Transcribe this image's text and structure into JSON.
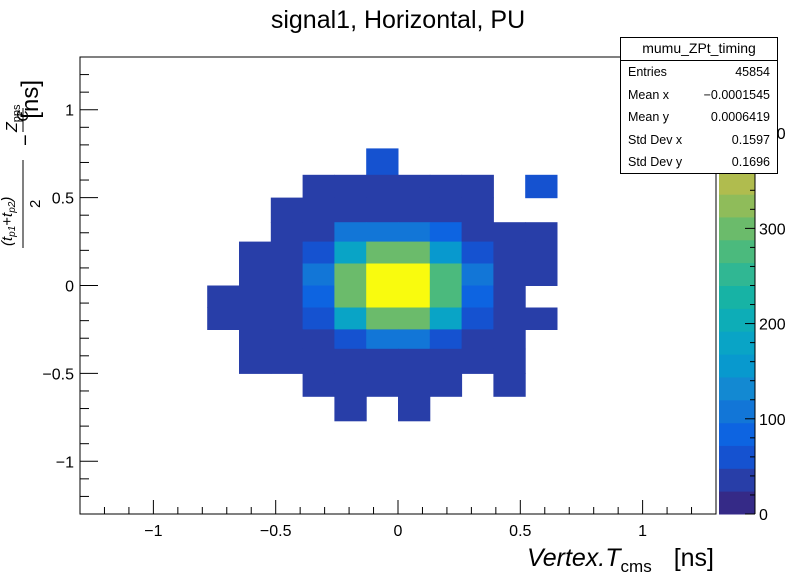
{
  "chart_data": {
    "type": "heatmap",
    "title": "signal1, Horizontal, PU",
    "xlabel": "Vertex.T_cms  [ns]",
    "ylabel": "(t_p1+t_p2)/2 − Z_pps/C  [ns]",
    "xlim": [
      -1.3,
      1.3
    ],
    "ylim": [
      -1.3,
      1.3
    ],
    "x_ticks": [
      "−1",
      "−0.5",
      "0",
      "0.5",
      "1"
    ],
    "y_ticks": [
      "−1",
      "−0.5",
      "0",
      "0.5",
      "1"
    ],
    "z_range": [
      0,
      480
    ],
    "z_ticks": [
      "0",
      "100",
      "200",
      "300",
      "400"
    ],
    "grid": false,
    "x_bin_edges": [
      -0.78,
      -0.65,
      -0.52,
      -0.39,
      -0.26,
      -0.13,
      0.0,
      0.13,
      0.26,
      0.39,
      0.52,
      0.65
    ],
    "y_bin_edges": [
      -0.77,
      -0.63,
      -0.5,
      -0.36,
      -0.25,
      -0.125,
      0.0,
      0.125,
      0.25,
      0.36,
      0.5,
      0.63,
      0.78
    ],
    "cells": [
      [
        -0.13,
        0.63,
        60
      ],
      [
        -0.39,
        0.5,
        40
      ],
      [
        -0.26,
        0.5,
        40
      ],
      [
        -0.13,
        0.5,
        40
      ],
      [
        0.0,
        0.5,
        40
      ],
      [
        0.13,
        0.5,
        40
      ],
      [
        0.26,
        0.5,
        40
      ],
      [
        0.52,
        0.5,
        60
      ],
      [
        -0.52,
        0.36,
        40
      ],
      [
        -0.39,
        0.36,
        40
      ],
      [
        -0.26,
        0.36,
        40
      ],
      [
        -0.13,
        0.36,
        40
      ],
      [
        0.0,
        0.36,
        40
      ],
      [
        0.13,
        0.36,
        40
      ],
      [
        0.26,
        0.36,
        40
      ],
      [
        -0.52,
        0.25,
        40
      ],
      [
        -0.39,
        0.25,
        40
      ],
      [
        -0.26,
        0.25,
        100
      ],
      [
        -0.13,
        0.25,
        110
      ],
      [
        0.0,
        0.25,
        110
      ],
      [
        0.13,
        0.25,
        90
      ],
      [
        0.26,
        0.25,
        40
      ],
      [
        0.39,
        0.25,
        40
      ],
      [
        0.52,
        0.25,
        40
      ],
      [
        -0.65,
        0.125,
        40
      ],
      [
        -0.52,
        0.125,
        40
      ],
      [
        -0.39,
        0.125,
        70
      ],
      [
        -0.26,
        0.125,
        170
      ],
      [
        -0.13,
        0.125,
        300
      ],
      [
        0.0,
        0.125,
        300
      ],
      [
        0.13,
        0.125,
        160
      ],
      [
        0.26,
        0.125,
        60
      ],
      [
        0.39,
        0.125,
        40
      ],
      [
        0.52,
        0.125,
        40
      ],
      [
        -0.65,
        0.0,
        40
      ],
      [
        -0.52,
        0.0,
        40
      ],
      [
        -0.39,
        0.0,
        110
      ],
      [
        -0.26,
        0.0,
        290
      ],
      [
        -0.13,
        0.0,
        470
      ],
      [
        0.0,
        0.0,
        470
      ],
      [
        0.13,
        0.0,
        270
      ],
      [
        0.26,
        0.0,
        100
      ],
      [
        0.39,
        0.0,
        40
      ],
      [
        0.52,
        0.0,
        40
      ],
      [
        -0.78,
        -0.125,
        40
      ],
      [
        -0.65,
        -0.125,
        40
      ],
      [
        -0.52,
        -0.125,
        40
      ],
      [
        -0.39,
        -0.125,
        80
      ],
      [
        -0.26,
        -0.125,
        290
      ],
      [
        -0.13,
        -0.125,
        470
      ],
      [
        0.0,
        -0.125,
        470
      ],
      [
        0.13,
        -0.125,
        270
      ],
      [
        0.26,
        -0.125,
        90
      ],
      [
        0.39,
        -0.125,
        40
      ],
      [
        -0.78,
        -0.25,
        40
      ],
      [
        -0.65,
        -0.25,
        40
      ],
      [
        -0.52,
        -0.25,
        40
      ],
      [
        -0.39,
        -0.25,
        70
      ],
      [
        -0.26,
        -0.25,
        180
      ],
      [
        -0.13,
        -0.25,
        310
      ],
      [
        0.0,
        -0.25,
        310
      ],
      [
        0.13,
        -0.25,
        170
      ],
      [
        0.26,
        -0.25,
        70
      ],
      [
        0.39,
        -0.25,
        40
      ],
      [
        0.52,
        -0.25,
        40
      ],
      [
        -0.65,
        -0.36,
        40
      ],
      [
        -0.52,
        -0.36,
        40
      ],
      [
        -0.39,
        -0.36,
        40
      ],
      [
        -0.26,
        -0.36,
        60
      ],
      [
        -0.13,
        -0.36,
        110
      ],
      [
        0.0,
        -0.36,
        110
      ],
      [
        0.13,
        -0.36,
        60
      ],
      [
        0.26,
        -0.36,
        40
      ],
      [
        0.39,
        -0.36,
        40
      ],
      [
        -0.65,
        -0.5,
        40
      ],
      [
        -0.52,
        -0.5,
        40
      ],
      [
        -0.39,
        -0.5,
        40
      ],
      [
        -0.26,
        -0.5,
        40
      ],
      [
        -0.13,
        -0.5,
        40
      ],
      [
        0.0,
        -0.5,
        40
      ],
      [
        0.13,
        -0.5,
        40
      ],
      [
        0.26,
        -0.5,
        40
      ],
      [
        0.39,
        -0.5,
        40
      ],
      [
        -0.39,
        -0.63,
        40
      ],
      [
        -0.26,
        -0.63,
        40
      ],
      [
        -0.13,
        -0.63,
        40
      ],
      [
        0.0,
        -0.63,
        40
      ],
      [
        0.13,
        -0.63,
        40
      ],
      [
        0.39,
        -0.63,
        40
      ],
      [
        -0.26,
        -0.77,
        40
      ],
      [
        0.0,
        -0.77,
        40
      ]
    ],
    "colorscale": [
      "#352a87",
      "#283ea8",
      "#1552d0",
      "#0d64e1",
      "#1276d7",
      "#1389d2",
      "#0899ce",
      "#09a4c6",
      "#0dadb7",
      "#17b3a5",
      "#30b793",
      "#4bba7d",
      "#6bbb6b",
      "#8fbc5a",
      "#b0bc4e",
      "#ccba45",
      "#e4b33a",
      "#f8c62c",
      "#f7e21b",
      "#f9fb0e"
    ]
  },
  "stats_box": {
    "title": "mumu_ZPt_timing",
    "rows": [
      {
        "label": "Entries",
        "value": "45854"
      },
      {
        "label": "Mean x",
        "value": "−0.0001545"
      },
      {
        "label": "Mean y",
        "value": "0.0006419"
      },
      {
        "label": "Std Dev x",
        "value": "0.1597"
      },
      {
        "label": "Std Dev y",
        "value": "0.1696"
      }
    ]
  },
  "labels": {
    "x_var": "Vertex.T",
    "x_sub": "cms",
    "x_unit": "[ns]",
    "y_num_t1": "t",
    "y_num_p1": "p1",
    "y_num_plus": "+",
    "y_num_t2": "t",
    "y_num_p2": "p2",
    "y_den": "2",
    "y_minus": "−",
    "y_z": "Z",
    "y_z_sub": "pps",
    "y_c": "C",
    "y_unit": "[ns]"
  }
}
